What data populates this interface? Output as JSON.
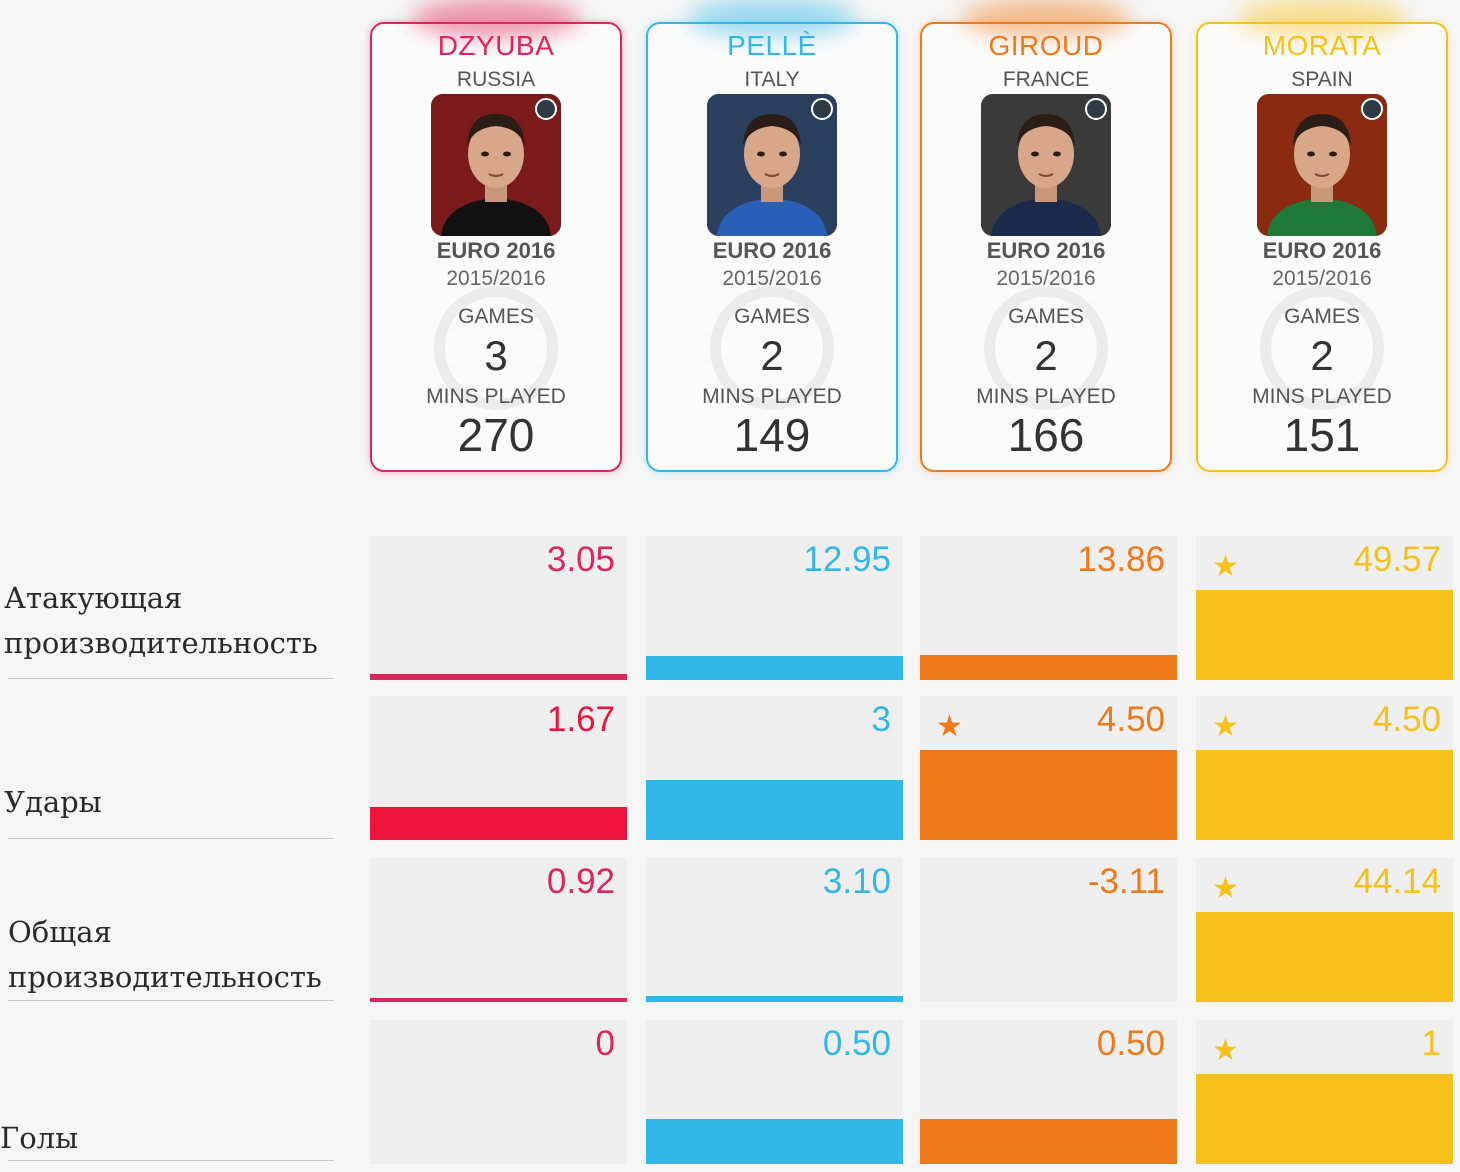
{
  "players": [
    {
      "name": "DZYUBA",
      "country": "RUSSIA",
      "tournament": "EURO 2016",
      "season": "2015/2016",
      "games_label": "GAMES",
      "games": "3",
      "mins_label": "MINS PLAYED",
      "mins": "270",
      "color": "#e0245e",
      "photo_bg": "#7a1a1a",
      "shirt": "#111111"
    },
    {
      "name": "PELLÈ",
      "country": "ITALY",
      "tournament": "EURO 2016",
      "season": "2015/2016",
      "games_label": "GAMES",
      "games": "2",
      "mins_label": "MINS PLAYED",
      "mins": "149",
      "color": "#2fb8e8",
      "photo_bg": "#2a3e5e",
      "shirt": "#2a5fb8"
    },
    {
      "name": "GIROUD",
      "country": "FRANCE",
      "tournament": "EURO 2016",
      "season": "2015/2016",
      "games_label": "GAMES",
      "games": "2",
      "mins_label": "MINS PLAYED",
      "mins": "166",
      "color": "#f07a1a",
      "photo_bg": "#3a3a3a",
      "shirt": "#1b2a4a"
    },
    {
      "name": "MORATA",
      "country": "SPAIN",
      "tournament": "EURO 2016",
      "season": "2015/2016",
      "games_label": "GAMES",
      "games": "2",
      "mins_label": "MINS PLAYED",
      "mins": "151",
      "color": "#f6c21a",
      "photo_bg": "#8a2a10",
      "shirt": "#1f7a3a"
    }
  ],
  "metrics": [
    {
      "label": "Атакующая производительность",
      "max": 49.57,
      "values": [
        "3.05",
        "12.95",
        "13.86",
        "49.57"
      ],
      "numbers": [
        3.05,
        12.95,
        13.86,
        49.57
      ],
      "best": [
        false,
        false,
        false,
        true
      ]
    },
    {
      "label": "Удары",
      "max": 4.5,
      "values": [
        "1.67",
        "3",
        "4.50",
        "4.50"
      ],
      "numbers": [
        1.67,
        3,
        4.5,
        4.5
      ],
      "best": [
        false,
        false,
        true,
        true
      ]
    },
    {
      "label": "Общая производительность",
      "max": 44.14,
      "values": [
        "0.92",
        "3.10",
        "-3.11",
        "44.14"
      ],
      "numbers": [
        0.92,
        3.1,
        -3.11,
        44.14
      ],
      "best": [
        false,
        false,
        false,
        true
      ]
    },
    {
      "label": "Голы",
      "max": 1,
      "values": [
        "0",
        "0.50",
        "0.50",
        "1"
      ],
      "numbers": [
        0,
        0.5,
        0.5,
        1
      ],
      "best": [
        false,
        false,
        false,
        true
      ]
    }
  ],
  "chart_data": {
    "type": "bar",
    "categories": [
      "DZYUBA",
      "PELLÈ",
      "GIROUD",
      "MORATA"
    ],
    "series": [
      {
        "name": "Атакующая производительность",
        "values": [
          3.05,
          12.95,
          13.86,
          49.57
        ]
      },
      {
        "name": "Удары",
        "values": [
          1.67,
          3,
          4.5,
          4.5
        ]
      },
      {
        "name": "Общая производительность",
        "values": [
          0.92,
          3.1,
          -3.11,
          44.14
        ]
      },
      {
        "name": "Голы",
        "values": [
          0,
          0.5,
          0.5,
          1
        ]
      }
    ]
  },
  "colors": {
    "russia": "#e0245e",
    "italy": "#2fb8e8",
    "france": "#f07a1a",
    "spain": "#f6c21a",
    "shots_russia": "#f0143c"
  },
  "star_glyph": "★"
}
